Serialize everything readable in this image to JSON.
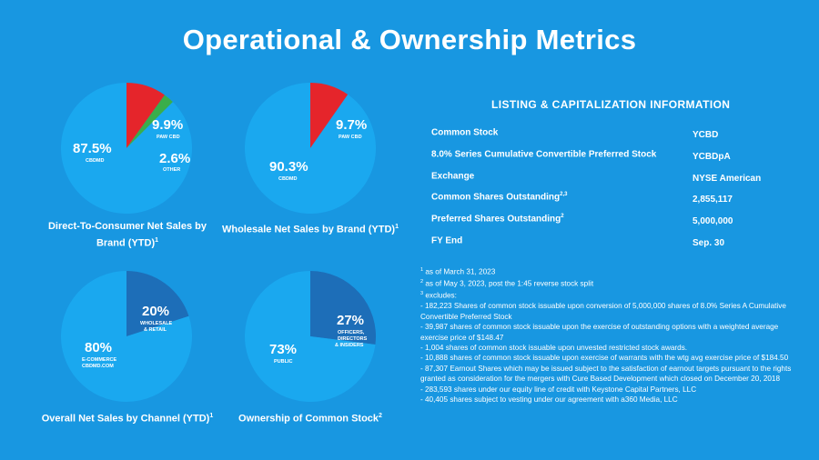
{
  "title": "Operational & Ownership Metrics",
  "colors": {
    "background": "#1897e1",
    "pie_light": "#1aa8ef",
    "pie_dark": "#1d6eb8",
    "red": "#e5252b",
    "green": "#3aae4a"
  },
  "pies": [
    {
      "caption": "Direct-To-Consumer Net Sales by Brand (YTD)",
      "sup": "1",
      "slices": [
        {
          "pct": "87.5%",
          "label": "CBDMD",
          "value": 87.5,
          "color": "#1aa8ef"
        },
        {
          "pct": "9.9%",
          "label": "PAW CBD",
          "value": 9.9,
          "color": "#e5252b"
        },
        {
          "pct": "2.6%",
          "label": "OTHER",
          "value": 2.6,
          "color": "#3aae4a"
        }
      ]
    },
    {
      "caption": "Wholesale Net Sales by Brand (YTD)",
      "sup": "1",
      "slices": [
        {
          "pct": "90.3%",
          "label": "CBDMD",
          "value": 90.3,
          "color": "#1aa8ef"
        },
        {
          "pct": "9.7%",
          "label": "PAW CBD",
          "value": 9.7,
          "color": "#e5252b"
        }
      ]
    },
    {
      "caption": "Overall Net Sales by Channel (YTD)",
      "sup": "1",
      "slices": [
        {
          "pct": "80%",
          "label": "E-COMMERCE CBDMD.COM",
          "value": 80,
          "color": "#1aa8ef"
        },
        {
          "pct": "20%",
          "label": "WHOLESALE & RETAIL",
          "value": 20,
          "color": "#1d6eb8"
        }
      ]
    },
    {
      "caption": "Ownership of Common Stock",
      "sup": "2",
      "slices": [
        {
          "pct": "73%",
          "label": "PUBLIC",
          "value": 73,
          "color": "#1aa8ef"
        },
        {
          "pct": "27%",
          "label": "OFFICERS, DIRECTORS & INSIDERS",
          "value": 27,
          "color": "#1d6eb8"
        }
      ]
    }
  ],
  "listing": {
    "title": "LISTING & CAPITALIZATION INFORMATION",
    "rows": [
      {
        "label": "Common Stock",
        "sup": "",
        "value": "YCBD"
      },
      {
        "label": "8.0% Series Cumulative Convertible Preferred Stock",
        "sup": "",
        "value": "YCBDpA"
      },
      {
        "label": "Exchange",
        "sup": "",
        "value": "NYSE American"
      },
      {
        "label": "Common Shares Outstanding",
        "sup": "2,3",
        "value": "2,855,117"
      },
      {
        "label": "Preferred Shares Outstanding",
        "sup": "2",
        "value": "5,000,000"
      },
      {
        "label": "FY End",
        "sup": "",
        "value": "Sep. 30"
      }
    ]
  },
  "footnotes": [
    {
      "sup": "1",
      "text": " as of March 31, 2023"
    },
    {
      "sup": "2",
      "text": " as of May 3, 2023, post the 1:45 reverse stock split"
    },
    {
      "sup": "3",
      "text": " excludes:"
    },
    {
      "sup": "",
      "text": "- 182,223 Shares of common stock issuable upon conversion of  5,000,000 shares of 8.0% Series A  Cumulative Convertible Preferred Stock"
    },
    {
      "sup": "",
      "text": "- 39,987 shares of common stock issuable upon the exercise of outstanding options with a weighted average exercise price of $148.47"
    },
    {
      "sup": "",
      "text": "- 1,004 shares of common stock issuable upon unvested restricted stock awards."
    },
    {
      "sup": "",
      "text": "- 10,888 shares of common stock issuable upon exercise of warrants with the wtg avg exercise price of $184.50"
    },
    {
      "sup": "",
      "text": "- 87,307  Earnout Shares which may be issued subject to the satisfaction of earnout targets pursuant to the rights granted as consideration for the mergers with Cure Based Development which closed on December 20, 2018"
    },
    {
      "sup": "",
      "text": "- 283,593 shares under our equity line of credit with Keystone Capital Partners, LLC"
    },
    {
      "sup": "",
      "text": "- 40,405 shares subject to vesting under our agreement with a360 Media, LLC"
    }
  ]
}
